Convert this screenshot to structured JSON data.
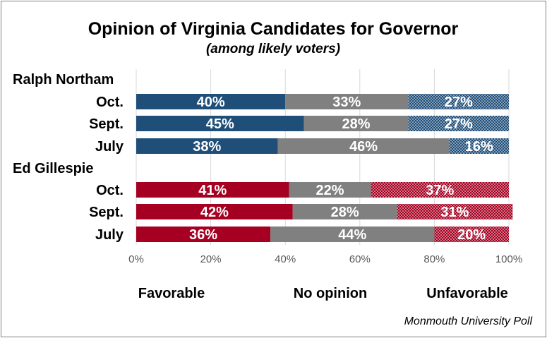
{
  "chart_data": {
    "type": "bar",
    "orientation": "horizontal",
    "stacked": true,
    "title": "Opinion of Virginia Candidates for Governor",
    "subtitle": "(among likely voters)",
    "groups": [
      {
        "name": "Ralph Northam",
        "categories": [
          "Oct.",
          "Sept.",
          "July"
        ],
        "series": [
          {
            "name": "Favorable",
            "values": [
              40,
              45,
              38
            ],
            "labels": [
              "40%",
              "45%",
              "38%"
            ],
            "color": "#1f4e79"
          },
          {
            "name": "No opinion",
            "values": [
              33,
              28,
              46
            ],
            "labels": [
              "33%",
              "28%",
              "46%"
            ],
            "color": "#808080"
          },
          {
            "name": "Unfavorable",
            "values": [
              27,
              27,
              16
            ],
            "labels": [
              "27%",
              "27%",
              "16%"
            ],
            "color": "#1f4e79",
            "pattern": "dots"
          }
        ]
      },
      {
        "name": "Ed Gillespie",
        "categories": [
          "Oct.",
          "Sept.",
          "July"
        ],
        "series": [
          {
            "name": "Favorable",
            "values": [
              41,
              42,
              36
            ],
            "labels": [
              "41%",
              "42%",
              "36%"
            ],
            "color": "#a50021"
          },
          {
            "name": "No opinion",
            "values": [
              22,
              28,
              44
            ],
            "labels": [
              "22%",
              "28%",
              "44%"
            ],
            "color": "#808080"
          },
          {
            "name": "Unfavorable",
            "values": [
              37,
              31,
              20
            ],
            "labels": [
              "37%",
              "31%",
              "20%"
            ],
            "color": "#a50021",
            "pattern": "dots"
          }
        ]
      }
    ],
    "x_ticks": [
      "0%",
      "20%",
      "40%",
      "60%",
      "80%",
      "100%"
    ],
    "xlim": [
      0,
      100
    ],
    "grid": true,
    "legend": [
      "Favorable",
      "No opinion",
      "Unfavorable"
    ],
    "legend_position": "bottom",
    "source": "Monmouth University Poll"
  }
}
